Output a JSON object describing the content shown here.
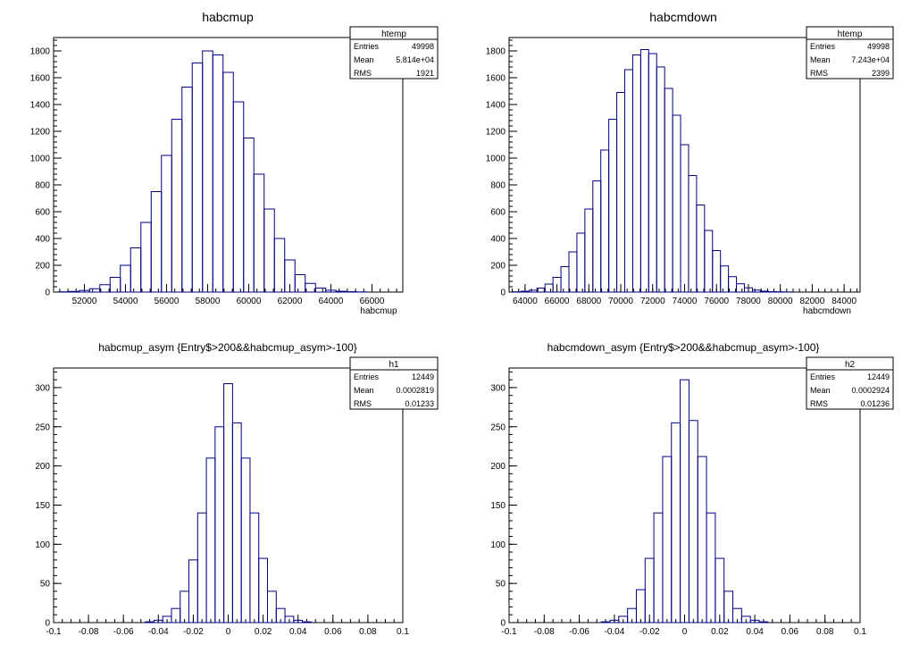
{
  "chart_data": [
    {
      "type": "histogram",
      "title": "habcmup",
      "xlabel": "habcmup",
      "ylabel": "",
      "xlim": [
        50500,
        67500
      ],
      "ylim": [
        0,
        1900
      ],
      "xticks": [
        52000,
        54000,
        56000,
        58000,
        60000,
        62000,
        64000,
        66000
      ],
      "yticks": [
        0,
        200,
        400,
        600,
        800,
        1000,
        1200,
        1400,
        1600,
        1800
      ],
      "stats": {
        "name": "htemp",
        "rows": [
          [
            "Entries",
            "49998"
          ],
          [
            "Mean",
            "5.814e+04"
          ],
          [
            "RMS",
            "1921"
          ]
        ]
      },
      "x": [
        51000,
        51500,
        52000,
        52500,
        53000,
        53500,
        54000,
        54500,
        55000,
        55500,
        56000,
        56500,
        57000,
        57500,
        58000,
        58500,
        59000,
        59500,
        60000,
        60500,
        61000,
        61500,
        62000,
        62500,
        63000,
        63500,
        64000,
        64500,
        65000,
        65500,
        66000
      ],
      "values": [
        2,
        5,
        12,
        25,
        55,
        110,
        200,
        330,
        520,
        750,
        1020,
        1290,
        1530,
        1710,
        1800,
        1770,
        1640,
        1420,
        1150,
        880,
        620,
        400,
        240,
        130,
        65,
        30,
        14,
        6,
        3,
        1,
        0
      ]
    },
    {
      "type": "histogram",
      "title": "habcmdown",
      "xlabel": "habcmdown",
      "ylabel": "",
      "xlim": [
        63000,
        85000
      ],
      "ylim": [
        0,
        1900
      ],
      "xticks": [
        64000,
        66000,
        68000,
        70000,
        72000,
        74000,
        76000,
        78000,
        80000,
        82000,
        84000
      ],
      "yticks": [
        0,
        200,
        400,
        600,
        800,
        1000,
        1200,
        1400,
        1600,
        1800
      ],
      "stats": {
        "name": "htemp",
        "rows": [
          [
            "Entries",
            "49998"
          ],
          [
            "Mean",
            "7.243e+04"
          ],
          [
            "RMS",
            "2399"
          ]
        ]
      },
      "x": [
        63500,
        64000,
        64500,
        65000,
        65500,
        66000,
        66500,
        67000,
        67500,
        68000,
        68500,
        69000,
        69500,
        70000,
        70500,
        71000,
        71500,
        72000,
        72500,
        73000,
        73500,
        74000,
        74500,
        75000,
        75500,
        76000,
        76500,
        77000,
        77500,
        78000,
        78500,
        79000,
        79500,
        80000,
        80500,
        81000,
        81500
      ],
      "values": [
        2,
        6,
        14,
        30,
        60,
        110,
        190,
        300,
        440,
        620,
        830,
        1060,
        1290,
        1490,
        1660,
        1770,
        1810,
        1780,
        1680,
        1520,
        1320,
        1100,
        870,
        650,
        460,
        310,
        195,
        115,
        62,
        32,
        15,
        7,
        3,
        2,
        1,
        0,
        0
      ]
    },
    {
      "type": "histogram",
      "title": "habcmup_asym {Entry$>200&&habcmup_asym>-100}",
      "xlabel": "",
      "ylabel": "",
      "xlim": [
        -0.1,
        0.1
      ],
      "ylim": [
        0,
        325
      ],
      "xticks": [
        -0.1,
        -0.08,
        -0.06,
        -0.04,
        -0.02,
        0,
        0.02,
        0.04,
        0.06,
        0.08,
        0.1
      ],
      "yticks": [
        0,
        50,
        100,
        150,
        200,
        250,
        300
      ],
      "stats": {
        "name": "h1",
        "rows": [
          [
            "Entries",
            "12449"
          ],
          [
            "Mean",
            "0.0002819"
          ],
          [
            "RMS",
            "0.01233"
          ]
        ]
      },
      "x": [
        -0.045,
        -0.04,
        -0.035,
        -0.03,
        -0.025,
        -0.02,
        -0.015,
        -0.01,
        -0.005,
        0,
        0.005,
        0.01,
        0.015,
        0.02,
        0.025,
        0.03,
        0.035,
        0.04,
        0.045
      ],
      "values": [
        1,
        3,
        8,
        18,
        40,
        80,
        140,
        210,
        250,
        305,
        255,
        210,
        140,
        82,
        40,
        18,
        8,
        3,
        1
      ]
    },
    {
      "type": "histogram",
      "title": "habcmdown_asym {Entry$>200&&habcmup_asym>-100}",
      "xlabel": "",
      "ylabel": "",
      "xlim": [
        -0.1,
        0.1
      ],
      "ylim": [
        0,
        325
      ],
      "xticks": [
        -0.1,
        -0.08,
        -0.06,
        -0.04,
        -0.02,
        0,
        0.02,
        0.04,
        0.06,
        0.08,
        0.1
      ],
      "yticks": [
        0,
        50,
        100,
        150,
        200,
        250,
        300
      ],
      "stats": {
        "name": "h2",
        "rows": [
          [
            "Entries",
            "12449"
          ],
          [
            "Mean",
            "0.0002924"
          ],
          [
            "RMS",
            "0.01236"
          ]
        ]
      },
      "x": [
        -0.045,
        -0.04,
        -0.035,
        -0.03,
        -0.025,
        -0.02,
        -0.015,
        -0.01,
        -0.005,
        0,
        0.005,
        0.01,
        0.015,
        0.02,
        0.025,
        0.03,
        0.035,
        0.04,
        0.045
      ],
      "values": [
        1,
        3,
        8,
        18,
        42,
        82,
        140,
        212,
        255,
        310,
        258,
        212,
        140,
        82,
        40,
        18,
        8,
        3,
        1
      ]
    }
  ]
}
